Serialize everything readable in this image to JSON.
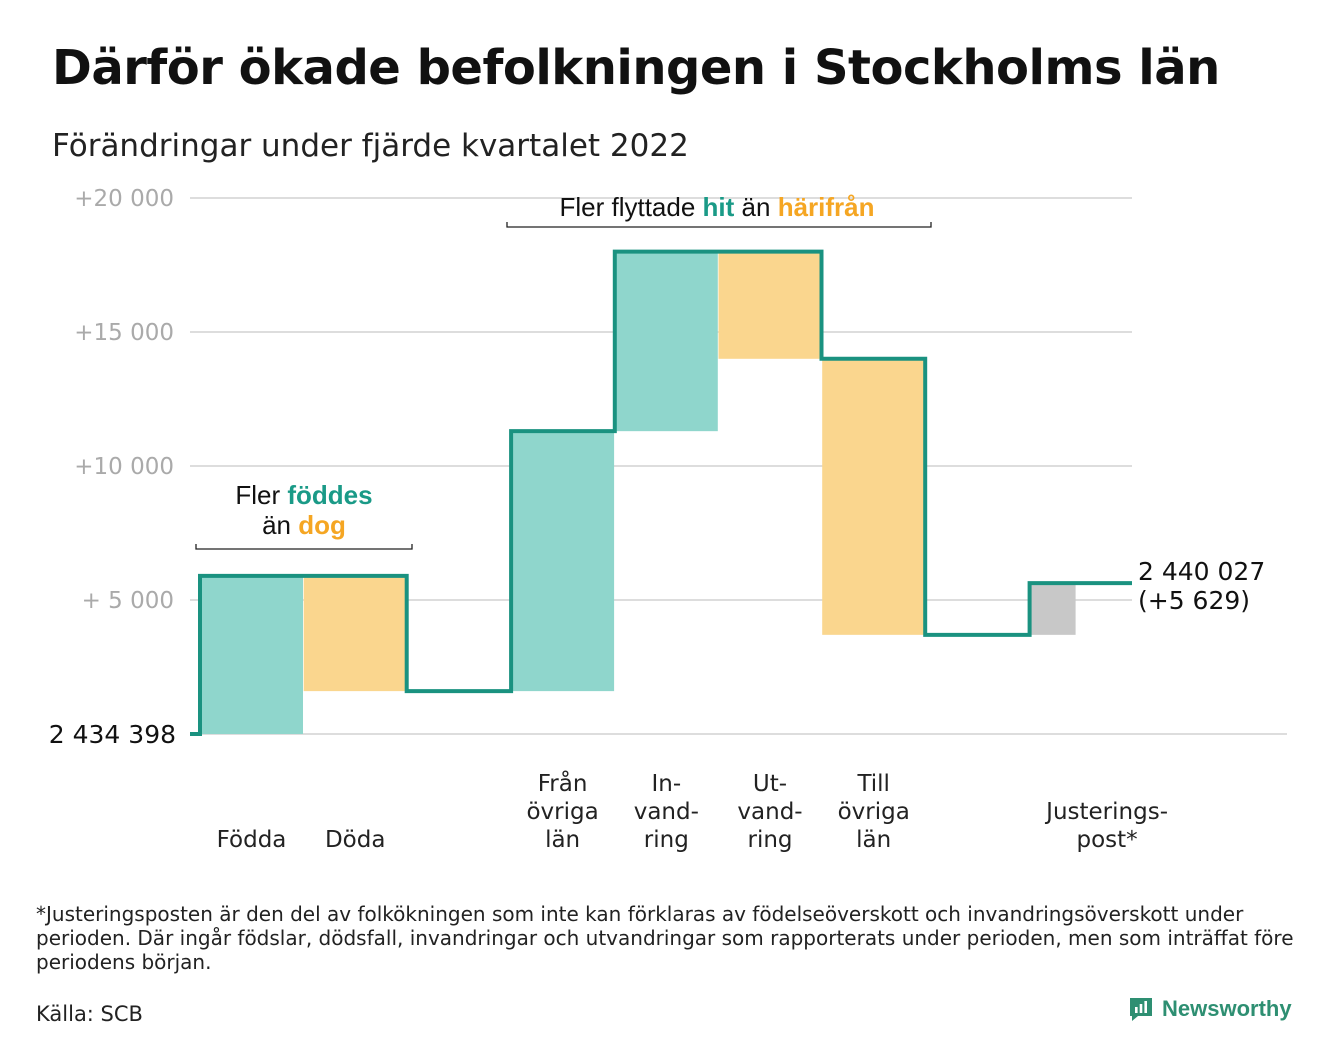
{
  "title": "Därför ökade befolkningen i Stockholms län",
  "subtitle": "Förändringar under fjärde kvartalet 2022",
  "footnote": "*Justeringsposten är den del av folkökningen som inte kan förklaras av födelseöverskott och invandringsöverskott under perioden. Där ingår födslar, dödsfall, invandringar och utvandringar som rapporterats under perioden, men som inträffat före periodens början.",
  "source": "Källa: SCB",
  "brand": "Newsworthy",
  "chart_data": {
    "type": "waterfall",
    "ylim": [
      0,
      20000
    ],
    "yticks": [
      {
        "value": 5000,
        "label": "+ 5 000"
      },
      {
        "value": 10000,
        "label": "+10 000"
      },
      {
        "value": 15000,
        "label": "+15 000"
      },
      {
        "value": 20000,
        "label": "+20 000"
      }
    ],
    "start_label": "2 434 398",
    "end_label": [
      "2 440 027",
      "(+5 629)"
    ],
    "steps": [
      {
        "key": "fodda",
        "label": [
          "Födda"
        ],
        "delta": 5900,
        "kind": "in"
      },
      {
        "key": "doda",
        "label": [
          "Döda"
        ],
        "delta": -4300,
        "kind": "out"
      },
      {
        "key": "fran_ovriga_lan",
        "label": [
          "Från",
          "övriga",
          "län"
        ],
        "delta": 9700,
        "kind": "in"
      },
      {
        "key": "invandring",
        "label": [
          "In-",
          "vand-",
          "ring"
        ],
        "delta": 6700,
        "kind": "in"
      },
      {
        "key": "utvandring",
        "label": [
          "Ut-",
          "vand-",
          "ring"
        ],
        "delta": -4000,
        "kind": "out"
      },
      {
        "key": "till_ovriga_lan",
        "label": [
          "Till",
          "övriga",
          "län"
        ],
        "delta": -10300,
        "kind": "out"
      },
      {
        "key": "justeringspost",
        "label": [
          "Justerings-",
          "post*"
        ],
        "delta": 1929,
        "kind": "adj"
      }
    ],
    "annotations": [
      {
        "parts": [
          [
            "Fler ",
            "plain"
          ],
          [
            "föddes",
            "in"
          ]
        ],
        "parts2": [
          [
            "än ",
            "plain"
          ],
          [
            "dog",
            "out"
          ]
        ]
      },
      {
        "parts": [
          [
            "Fler flyttade ",
            "plain"
          ],
          [
            "hit",
            "in"
          ],
          [
            " än ",
            "plain"
          ],
          [
            "härifrån",
            "out"
          ]
        ]
      }
    ],
    "colors": {
      "in": "#8fd6cc",
      "out": "#fad68e",
      "adj": "#c8c8c8",
      "line": "#1a9280",
      "in_text": "#1a9a87",
      "out_text": "#f5a623",
      "grid": "#dddddd",
      "tick": "#aaaaaa"
    }
  }
}
